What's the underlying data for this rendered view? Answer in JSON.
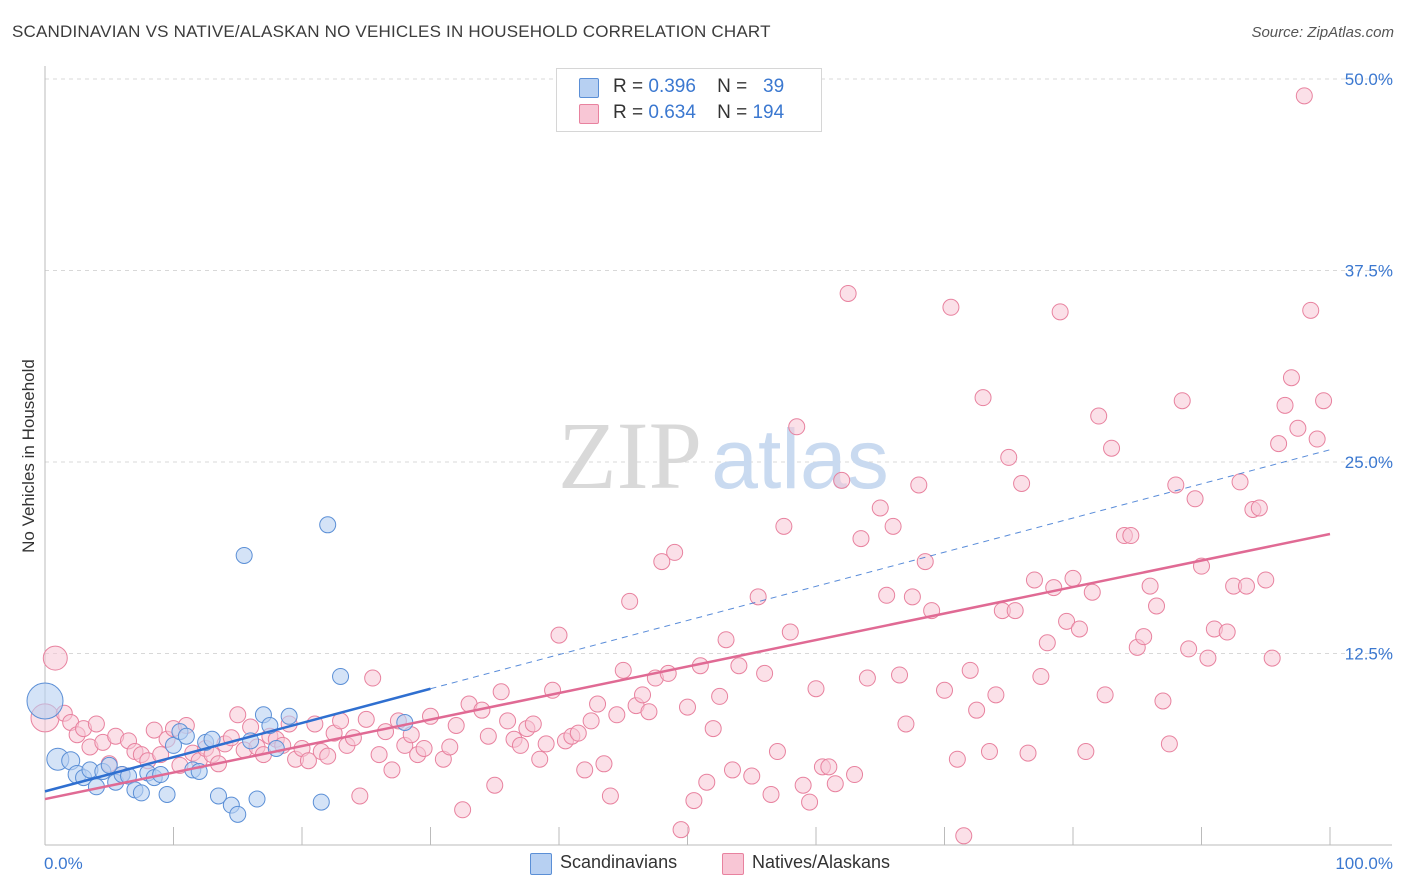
{
  "title": "SCANDINAVIAN VS NATIVE/ALASKAN NO VEHICLES IN HOUSEHOLD CORRELATION CHART",
  "source": "Source: ZipAtlas.com",
  "watermark": {
    "zip": "ZIP",
    "atlas": "atlas"
  },
  "legend": {
    "r_label": "R =",
    "n_label": "N =",
    "scandinavians": {
      "r": "0.396",
      "n": "39"
    },
    "natives": {
      "r": "0.634",
      "n": "194"
    }
  },
  "colors": {
    "blue_fill": "#b7d0f2",
    "blue_stroke": "#5b8fd6",
    "blue_line": "#2f6fd0",
    "pink_fill": "#f8c6d5",
    "pink_stroke": "#e8829f",
    "pink_line": "#e06a94",
    "axis_text": "#3b78d0",
    "grid": "#d8d8d8"
  },
  "chart_data": {
    "type": "scatter",
    "title": "SCANDINAVIAN VS NATIVE/ALASKAN NO VEHICLES IN HOUSEHOLD CORRELATION CHART",
    "xlabel": "",
    "ylabel": "No Vehicles in Household",
    "xlim": [
      0,
      100
    ],
    "ylim": [
      0,
      50
    ],
    "x_tick_labels": [
      "0.0%",
      "100.0%"
    ],
    "y_tick_labels": [
      "12.5%",
      "25.0%",
      "37.5%",
      "50.0%"
    ],
    "y_ticks": [
      12.5,
      25.0,
      37.5,
      50.0
    ],
    "grid": "horizontal dashed",
    "legend_placement": "top-center",
    "series": [
      {
        "name": "Scandinavians",
        "r": 0.396,
        "n": 39,
        "trend": {
          "x0": 0,
          "y0": 3.5,
          "x1": 30,
          "y1": 10.2,
          "dashed_to": {
            "x": 100,
            "y": 25.8
          }
        },
        "points": [
          [
            0,
            9.4,
            18
          ],
          [
            1,
            5.6,
            11
          ],
          [
            2,
            5.5,
            9
          ],
          [
            2.5,
            4.6,
            9
          ],
          [
            3,
            4.4,
            8
          ],
          [
            3.5,
            4.9,
            8
          ],
          [
            4,
            3.8,
            8
          ],
          [
            4.5,
            4.8,
            8
          ],
          [
            5,
            5.2,
            8
          ],
          [
            5.5,
            4.1,
            8
          ],
          [
            6,
            4.6,
            8
          ],
          [
            6.5,
            4.5,
            8
          ],
          [
            7,
            3.6,
            8
          ],
          [
            7.5,
            3.4,
            8
          ],
          [
            8,
            4.7,
            8
          ],
          [
            8.5,
            4.4,
            8
          ],
          [
            9,
            4.6,
            8
          ],
          [
            9.5,
            3.3,
            8
          ],
          [
            10,
            6.5,
            8
          ],
          [
            10.5,
            7.4,
            8
          ],
          [
            11,
            7.1,
            8
          ],
          [
            11.5,
            4.9,
            8
          ],
          [
            12,
            4.8,
            8
          ],
          [
            12.5,
            6.7,
            8
          ],
          [
            13,
            6.9,
            8
          ],
          [
            13.5,
            3.2,
            8
          ],
          [
            14.5,
            2.6,
            8
          ],
          [
            15,
            2.0,
            8
          ],
          [
            15.5,
            18.9,
            8
          ],
          [
            16,
            6.8,
            8
          ],
          [
            16.5,
            3.0,
            8
          ],
          [
            17,
            8.5,
            8
          ],
          [
            17.5,
            7.8,
            8
          ],
          [
            18,
            6.3,
            8
          ],
          [
            19,
            8.4,
            8
          ],
          [
            21.5,
            2.8,
            8
          ],
          [
            22,
            20.9,
            8
          ],
          [
            23,
            11.0,
            8
          ],
          [
            28,
            8.0,
            8
          ]
        ]
      },
      {
        "name": "Natives/Alaskans",
        "r": 0.634,
        "n": 194,
        "trend": {
          "x0": 0,
          "y0": 3.0,
          "x1": 100,
          "y1": 20.3
        },
        "points": [
          [
            0,
            8.3,
            14
          ],
          [
            0.8,
            12.2,
            12
          ],
          [
            1.5,
            8.6,
            8
          ],
          [
            2,
            8.0,
            8
          ],
          [
            2.5,
            7.2,
            8
          ],
          [
            3,
            7.6,
            8
          ],
          [
            3.5,
            6.4,
            8
          ],
          [
            4,
            7.9,
            8
          ],
          [
            4.5,
            6.7,
            8
          ],
          [
            5,
            5.3,
            8
          ],
          [
            5.5,
            7.1,
            8
          ],
          [
            6,
            4.6,
            8
          ],
          [
            6.5,
            6.8,
            8
          ],
          [
            7,
            6.1,
            8
          ],
          [
            7.5,
            5.9,
            8
          ],
          [
            8,
            5.5,
            8
          ],
          [
            8.5,
            7.5,
            8
          ],
          [
            9,
            5.9,
            8
          ],
          [
            9.5,
            6.9,
            8
          ],
          [
            10,
            7.6,
            8
          ],
          [
            10.5,
            5.2,
            8
          ],
          [
            11,
            7.8,
            8
          ],
          [
            11.5,
            6.0,
            8
          ],
          [
            12,
            5.5,
            8
          ],
          [
            12.5,
            6.3,
            8
          ],
          [
            13,
            5.9,
            8
          ],
          [
            13.5,
            5.3,
            8
          ],
          [
            14,
            6.6,
            8
          ],
          [
            14.5,
            7.0,
            8
          ],
          [
            15,
            8.5,
            8
          ],
          [
            15.5,
            6.2,
            8
          ],
          [
            16,
            7.7,
            8
          ],
          [
            16.5,
            6.4,
            8
          ],
          [
            17,
            5.9,
            8
          ],
          [
            17.5,
            7.1,
            8
          ],
          [
            18,
            6.9,
            8
          ],
          [
            18.5,
            6.5,
            8
          ],
          [
            19,
            7.9,
            8
          ],
          [
            19.5,
            5.6,
            8
          ],
          [
            20,
            6.3,
            8
          ],
          [
            20.5,
            5.5,
            8
          ],
          [
            21,
            7.9,
            8
          ],
          [
            21.5,
            6.1,
            8
          ],
          [
            22,
            5.8,
            8
          ],
          [
            22.5,
            7.3,
            8
          ],
          [
            23,
            8.1,
            8
          ],
          [
            23.5,
            6.5,
            8
          ],
          [
            24,
            7.0,
            8
          ],
          [
            24.5,
            3.2,
            8
          ],
          [
            25,
            8.2,
            8
          ],
          [
            25.5,
            10.9,
            8
          ],
          [
            26,
            5.9,
            8
          ],
          [
            26.5,
            7.4,
            8
          ],
          [
            27,
            4.9,
            8
          ],
          [
            27.5,
            8.1,
            8
          ],
          [
            28,
            6.5,
            8
          ],
          [
            28.5,
            7.2,
            8
          ],
          [
            29,
            5.9,
            8
          ],
          [
            29.5,
            6.3,
            8
          ],
          [
            30,
            8.4,
            8
          ],
          [
            31,
            5.6,
            8
          ],
          [
            31.5,
            6.4,
            8
          ],
          [
            32,
            7.8,
            8
          ],
          [
            32.5,
            2.3,
            8
          ],
          [
            33,
            9.2,
            8
          ],
          [
            34,
            8.8,
            8
          ],
          [
            34.5,
            7.1,
            8
          ],
          [
            35,
            3.9,
            8
          ],
          [
            35.5,
            10.0,
            8
          ],
          [
            36,
            8.1,
            8
          ],
          [
            36.5,
            6.9,
            8
          ],
          [
            37,
            6.5,
            8
          ],
          [
            37.5,
            7.6,
            8
          ],
          [
            38,
            7.9,
            8
          ],
          [
            38.5,
            5.6,
            8
          ],
          [
            39,
            6.6,
            8
          ],
          [
            39.5,
            10.1,
            8
          ],
          [
            40,
            13.7,
            8
          ],
          [
            40.5,
            6.8,
            8
          ],
          [
            41,
            7.1,
            8
          ],
          [
            41.5,
            7.3,
            8
          ],
          [
            42,
            4.9,
            8
          ],
          [
            42.5,
            8.1,
            8
          ],
          [
            43,
            9.2,
            8
          ],
          [
            43.5,
            5.3,
            8
          ],
          [
            44,
            3.2,
            8
          ],
          [
            44.5,
            8.5,
            8
          ],
          [
            45,
            11.4,
            8
          ],
          [
            45.5,
            15.9,
            8
          ],
          [
            46,
            9.1,
            8
          ],
          [
            46.5,
            9.8,
            8
          ],
          [
            47,
            8.7,
            8
          ],
          [
            47.5,
            10.9,
            8
          ],
          [
            48,
            18.5,
            8
          ],
          [
            48.5,
            11.2,
            8
          ],
          [
            49,
            19.1,
            8
          ],
          [
            49.5,
            1.0,
            8
          ],
          [
            50,
            9.0,
            8
          ],
          [
            50.5,
            2.9,
            8
          ],
          [
            51,
            11.7,
            8
          ],
          [
            51.5,
            4.1,
            8
          ],
          [
            52,
            7.6,
            8
          ],
          [
            52.5,
            9.7,
            8
          ],
          [
            53,
            13.4,
            8
          ],
          [
            53.5,
            4.9,
            8
          ],
          [
            54,
            11.7,
            8
          ],
          [
            55,
            4.5,
            8
          ],
          [
            55.5,
            16.2,
            8
          ],
          [
            56,
            11.2,
            8
          ],
          [
            56.5,
            3.3,
            8
          ],
          [
            57,
            6.1,
            8
          ],
          [
            57.5,
            20.8,
            8
          ],
          [
            58,
            13.9,
            8
          ],
          [
            58.5,
            27.3,
            8
          ],
          [
            59,
            3.9,
            8
          ],
          [
            59.5,
            2.8,
            8
          ],
          [
            60,
            10.2,
            8
          ],
          [
            60.5,
            5.1,
            8
          ],
          [
            61,
            5.1,
            8
          ],
          [
            61.5,
            4.0,
            8
          ],
          [
            62,
            23.8,
            8
          ],
          [
            62.5,
            36.0,
            8
          ],
          [
            63,
            4.6,
            8
          ],
          [
            63.5,
            20.0,
            8
          ],
          [
            64,
            10.9,
            8
          ],
          [
            65,
            22.0,
            8
          ],
          [
            65.5,
            16.3,
            8
          ],
          [
            66,
            20.8,
            8
          ],
          [
            66.5,
            11.1,
            8
          ],
          [
            67,
            7.9,
            8
          ],
          [
            67.5,
            16.2,
            8
          ],
          [
            68,
            23.5,
            8
          ],
          [
            68.5,
            18.5,
            8
          ],
          [
            69,
            15.3,
            8
          ],
          [
            70,
            10.1,
            8
          ],
          [
            70.5,
            35.1,
            8
          ],
          [
            71,
            5.6,
            8
          ],
          [
            71.5,
            0.6,
            8
          ],
          [
            72,
            11.4,
            8
          ],
          [
            72.5,
            8.8,
            8
          ],
          [
            73,
            29.2,
            8
          ],
          [
            73.5,
            6.1,
            8
          ],
          [
            74,
            9.8,
            8
          ],
          [
            74.5,
            15.3,
            8
          ],
          [
            75,
            25.3,
            8
          ],
          [
            75.5,
            15.3,
            8
          ],
          [
            76,
            23.6,
            8
          ],
          [
            76.5,
            6.0,
            8
          ],
          [
            77,
            17.3,
            8
          ],
          [
            77.5,
            11.0,
            8
          ],
          [
            78,
            13.2,
            8
          ],
          [
            78.5,
            16.8,
            8
          ],
          [
            79,
            34.8,
            8
          ],
          [
            79.5,
            14.6,
            8
          ],
          [
            80,
            17.4,
            8
          ],
          [
            80.5,
            14.1,
            8
          ],
          [
            81,
            6.1,
            8
          ],
          [
            81.5,
            16.5,
            8
          ],
          [
            82,
            28.0,
            8
          ],
          [
            82.5,
            9.8,
            8
          ],
          [
            83,
            25.9,
            8
          ],
          [
            84,
            20.2,
            8
          ],
          [
            84.5,
            20.2,
            8
          ],
          [
            85,
            12.9,
            8
          ],
          [
            85.5,
            13.6,
            8
          ],
          [
            86,
            16.9,
            8
          ],
          [
            86.5,
            15.6,
            8
          ],
          [
            87,
            9.4,
            8
          ],
          [
            87.5,
            6.6,
            8
          ],
          [
            88,
            23.5,
            8
          ],
          [
            88.5,
            29.0,
            8
          ],
          [
            89,
            12.8,
            8
          ],
          [
            89.5,
            22.6,
            8
          ],
          [
            90,
            18.2,
            8
          ],
          [
            90.5,
            12.2,
            8
          ],
          [
            91,
            14.1,
            8
          ],
          [
            92,
            13.9,
            8
          ],
          [
            92.5,
            16.9,
            8
          ],
          [
            93,
            23.7,
            8
          ],
          [
            93.5,
            16.9,
            8
          ],
          [
            94,
            21.9,
            8
          ],
          [
            94.5,
            22.0,
            8
          ],
          [
            95,
            17.3,
            8
          ],
          [
            95.5,
            12.2,
            8
          ],
          [
            96,
            26.2,
            8
          ],
          [
            96.5,
            28.7,
            8
          ],
          [
            97,
            30.5,
            8
          ],
          [
            97.5,
            27.2,
            8
          ],
          [
            98,
            48.9,
            8
          ],
          [
            98.5,
            34.9,
            8
          ],
          [
            99,
            26.5,
            8
          ],
          [
            99.5,
            29.0,
            8
          ]
        ]
      }
    ]
  }
}
